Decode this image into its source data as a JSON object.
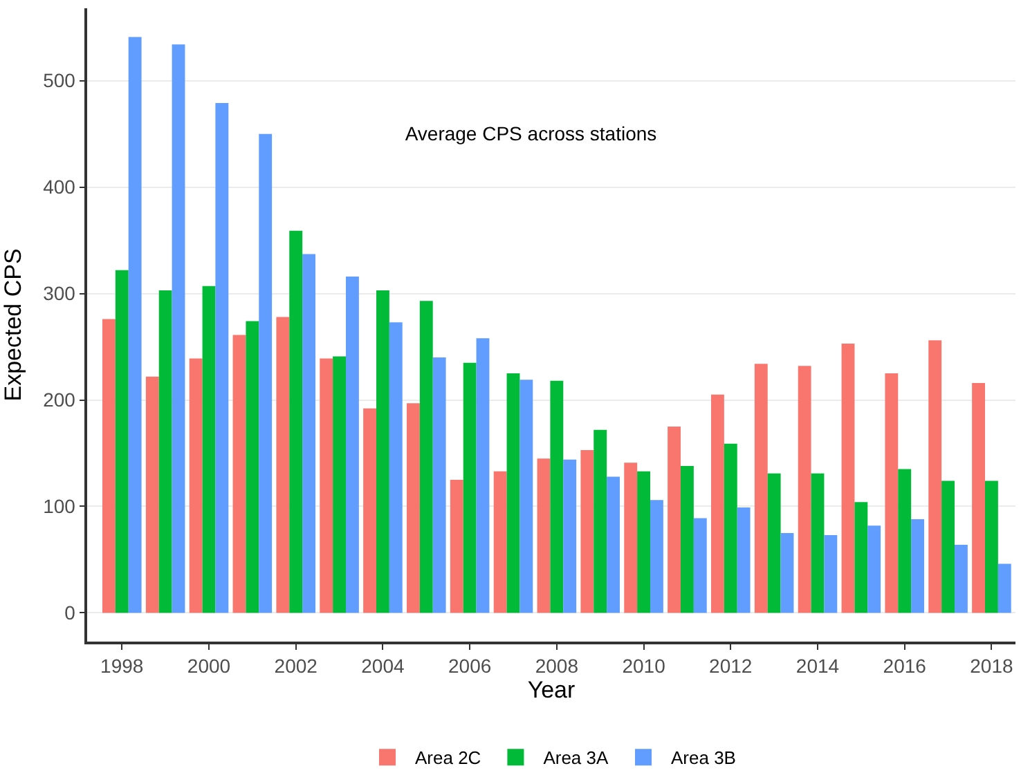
{
  "chart_data": {
    "type": "bar",
    "title": "Average CPS across stations",
    "xlabel": "Year",
    "ylabel": "Expected CPS",
    "x": [
      1998,
      1999,
      2000,
      2001,
      2002,
      2003,
      2004,
      2005,
      2006,
      2007,
      2008,
      2009,
      2010,
      2011,
      2012,
      2013,
      2014,
      2015,
      2016,
      2017,
      2018
    ],
    "series": [
      {
        "name": "Area 2C",
        "color": "#f8766d",
        "values": [
          276,
          222,
          239,
          261,
          278,
          239,
          192,
          197,
          125,
          133,
          145,
          153,
          141,
          175,
          205,
          234,
          232,
          253,
          225,
          256,
          216
        ]
      },
      {
        "name": "Area 3A",
        "color": "#00ba38",
        "values": [
          322,
          303,
          307,
          274,
          359,
          241,
          303,
          293,
          235,
          225,
          218,
          172,
          133,
          138,
          159,
          131,
          131,
          104,
          135,
          124,
          124
        ]
      },
      {
        "name": "Area 3B",
        "color": "#619cff",
        "values": [
          541,
          534,
          479,
          450,
          337,
          316,
          273,
          240,
          258,
          219,
          144,
          128,
          106,
          89,
          99,
          75,
          73,
          82,
          88,
          64,
          46
        ]
      }
    ],
    "xlim": [
      1997.2,
      2018.55
    ],
    "xticks": [
      1998,
      2000,
      2002,
      2004,
      2006,
      2008,
      2010,
      2012,
      2014,
      2016,
      2018
    ],
    "ylim": [
      -27,
      568
    ],
    "yticks": [
      0,
      100,
      200,
      300,
      400,
      500
    ],
    "grid": "y",
    "legend": "bottom"
  }
}
